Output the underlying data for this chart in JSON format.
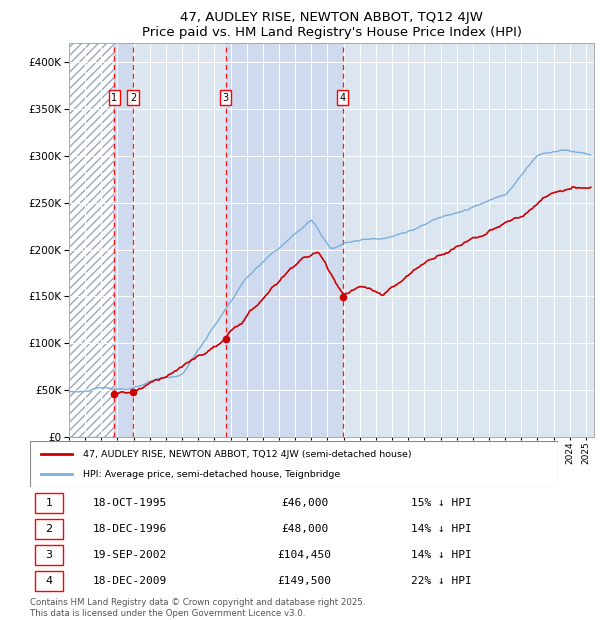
{
  "title": "47, AUDLEY RISE, NEWTON ABBOT, TQ12 4JW",
  "subtitle": "Price paid vs. HM Land Registry's House Price Index (HPI)",
  "ylim": [
    0,
    420000
  ],
  "yticks": [
    0,
    50000,
    100000,
    150000,
    200000,
    250000,
    300000,
    350000,
    400000
  ],
  "ytick_labels": [
    "£0",
    "£50K",
    "£100K",
    "£150K",
    "£200K",
    "£250K",
    "£300K",
    "£350K",
    "£400K"
  ],
  "xlim_start": 1993.0,
  "xlim_end": 2025.5,
  "hpi_color": "#7aafdc",
  "price_color": "#cc0000",
  "plot_bg_color": "#dce6f1",
  "shade_color": "#ccd8ee",
  "transactions": [
    {
      "num": 1,
      "date_label": "18-OCT-1995",
      "year": 1995.79,
      "price": 46000,
      "pct": "15%",
      "direction": "↓"
    },
    {
      "num": 2,
      "date_label": "18-DEC-1996",
      "year": 1996.96,
      "price": 48000,
      "pct": "14%",
      "direction": "↓"
    },
    {
      "num": 3,
      "date_label": "19-SEP-2002",
      "year": 2002.71,
      "price": 104450,
      "pct": "14%",
      "direction": "↓"
    },
    {
      "num": 4,
      "date_label": "18-DEC-2009",
      "year": 2009.96,
      "price": 149500,
      "pct": "22%",
      "direction": "↓"
    }
  ],
  "legend_line1": "47, AUDLEY RISE, NEWTON ABBOT, TQ12 4JW (semi-detached house)",
  "legend_line2": "HPI: Average price, semi-detached house, Teignbridge",
  "footnote": "Contains HM Land Registry data © Crown copyright and database right 2025.\nThis data is licensed under the Open Government Licence v3.0.",
  "background_color": "#ffffff"
}
